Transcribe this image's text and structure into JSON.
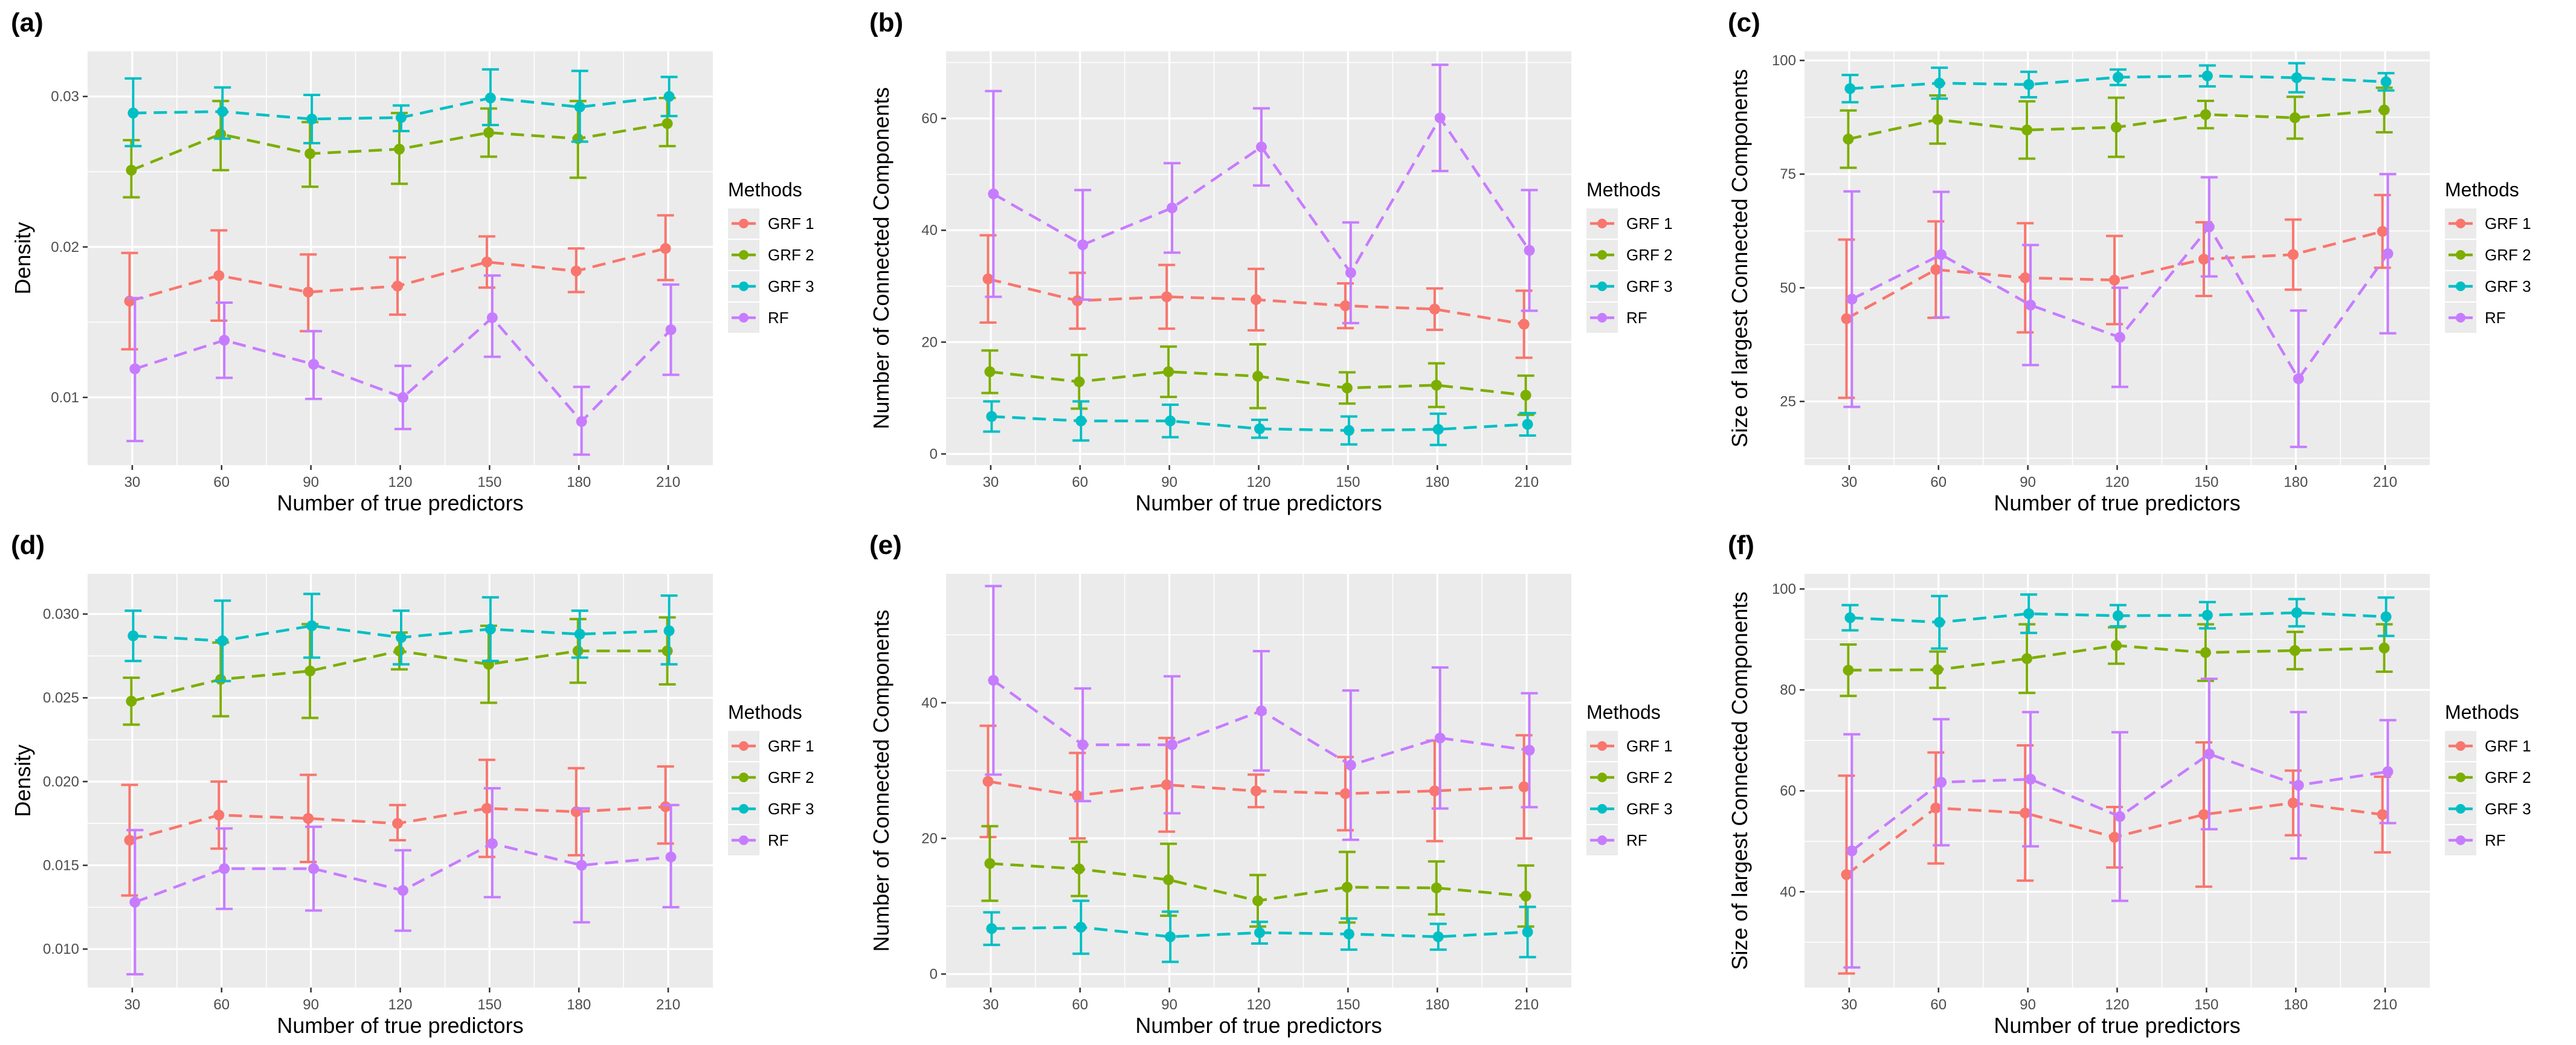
{
  "figure": {
    "legend_title": "Methods",
    "colors": {
      "GRF 1": "#F8766D",
      "GRF 2": "#7CAE00",
      "GRF 3": "#00BFC4",
      "RF": "#C77CFF"
    }
  },
  "chart_data": [
    {
      "panel": "(a)",
      "type": "line",
      "xlabel": "Number of true predictors",
      "ylabel": "Density",
      "categories": [
        30,
        60,
        90,
        120,
        150,
        180,
        210
      ],
      "xlim": [
        15,
        225
      ],
      "ylim": [
        0.0055,
        0.033
      ],
      "yticks": [
        0.01,
        0.02,
        0.03
      ],
      "ytick_labels": [
        "0.01",
        "0.02",
        "0.03"
      ],
      "series": [
        {
          "name": "GRF 1",
          "values": [
            0.0164,
            0.0181,
            0.017,
            0.0174,
            0.019,
            0.0184,
            0.0199
          ],
          "lower": [
            0.0132,
            0.0151,
            0.0144,
            0.0155,
            0.0173,
            0.017,
            0.0178
          ],
          "upper": [
            0.0196,
            0.0211,
            0.0195,
            0.0193,
            0.0207,
            0.0199,
            0.0221
          ]
        },
        {
          "name": "GRF 2",
          "values": [
            0.0251,
            0.0275,
            0.0262,
            0.0265,
            0.0276,
            0.0272,
            0.0282
          ],
          "lower": [
            0.0233,
            0.0251,
            0.024,
            0.0242,
            0.026,
            0.0246,
            0.0267
          ],
          "upper": [
            0.0271,
            0.0297,
            0.0283,
            0.0289,
            0.0292,
            0.0297,
            0.0299
          ]
        },
        {
          "name": "GRF 3",
          "values": [
            0.0289,
            0.029,
            0.0285,
            0.0286,
            0.0299,
            0.0293,
            0.03
          ],
          "lower": [
            0.0267,
            0.0272,
            0.0269,
            0.0277,
            0.0281,
            0.027,
            0.0287
          ],
          "upper": [
            0.0312,
            0.0306,
            0.0301,
            0.0294,
            0.0318,
            0.0317,
            0.0313
          ]
        },
        {
          "name": "RF",
          "values": [
            0.0119,
            0.0138,
            0.0122,
            0.01,
            0.0153,
            0.0084,
            0.0145
          ],
          "lower": [
            0.0071,
            0.0113,
            0.0099,
            0.0079,
            0.0127,
            0.0062,
            0.0115
          ],
          "upper": [
            0.0166,
            0.0163,
            0.0144,
            0.0121,
            0.0181,
            0.0107,
            0.0175
          ]
        }
      ]
    },
    {
      "panel": "(b)",
      "type": "line",
      "xlabel": "Number of true predictors",
      "ylabel": "Number of Connected Components",
      "categories": [
        30,
        60,
        90,
        120,
        150,
        180,
        210
      ],
      "xlim": [
        15,
        225
      ],
      "ylim": [
        -2,
        72
      ],
      "yticks": [
        0,
        20,
        40,
        60
      ],
      "ytick_labels": [
        "0",
        "20",
        "40",
        "60"
      ],
      "series": [
        {
          "name": "GRF 1",
          "values": [
            31.3,
            27.4,
            28.1,
            27.6,
            26.5,
            25.9,
            23.2
          ],
          "lower": [
            23.5,
            22.4,
            22.4,
            22.1,
            22.5,
            22.2,
            17.2
          ],
          "upper": [
            39.1,
            32.4,
            33.8,
            33.1,
            30.5,
            29.6,
            29.2
          ]
        },
        {
          "name": "GRF 2",
          "values": [
            14.7,
            12.9,
            14.7,
            13.9,
            11.8,
            12.3,
            10.5
          ],
          "lower": [
            10.9,
            8.1,
            10.2,
            8.2,
            9.0,
            8.4,
            7.0
          ],
          "upper": [
            18.5,
            17.7,
            19.2,
            19.6,
            14.6,
            16.2,
            14.0
          ]
        },
        {
          "name": "GRF 3",
          "values": [
            6.7,
            5.9,
            5.9,
            4.5,
            4.2,
            4.4,
            5.3
          ],
          "lower": [
            4.0,
            2.4,
            3.0,
            2.9,
            1.7,
            1.6,
            3.3
          ],
          "upper": [
            9.4,
            9.4,
            8.8,
            6.1,
            6.7,
            7.2,
            7.3
          ]
        },
        {
          "name": "RF",
          "values": [
            46.5,
            37.4,
            44.0,
            54.9,
            32.4,
            60.1,
            36.4
          ],
          "lower": [
            28.1,
            27.6,
            36.0,
            48.0,
            23.4,
            50.6,
            25.6
          ],
          "upper": [
            64.9,
            47.2,
            52.0,
            61.8,
            41.4,
            69.6,
            47.2
          ]
        }
      ]
    },
    {
      "panel": "(c)",
      "type": "line",
      "xlabel": "Number of true predictors",
      "ylabel": "Size of largest Connected Components",
      "categories": [
        30,
        60,
        90,
        120,
        150,
        180,
        210
      ],
      "xlim": [
        15,
        225
      ],
      "ylim": [
        11,
        102
      ],
      "yticks": [
        25,
        50,
        75,
        100
      ],
      "ytick_labels": [
        "25",
        "50",
        "75",
        "100"
      ],
      "series": [
        {
          "name": "GRF 1",
          "values": [
            43.2,
            54.0,
            52.2,
            51.7,
            56.3,
            57.3,
            62.4
          ],
          "lower": [
            25.8,
            43.4,
            40.2,
            42.0,
            48.2,
            49.6,
            54.4
          ],
          "upper": [
            60.6,
            64.6,
            64.2,
            61.4,
            64.4,
            65.0,
            70.4
          ]
        },
        {
          "name": "GRF 2",
          "values": [
            82.7,
            87.0,
            84.7,
            85.3,
            88.1,
            87.4,
            89.1
          ],
          "lower": [
            76.4,
            81.7,
            78.4,
            78.8,
            85.1,
            82.8,
            84.2
          ],
          "upper": [
            89.0,
            92.3,
            91.0,
            91.8,
            91.1,
            92.0,
            94.0
          ]
        },
        {
          "name": "GRF 3",
          "values": [
            93.8,
            95.0,
            94.7,
            96.3,
            96.6,
            96.2,
            95.3
          ],
          "lower": [
            90.8,
            91.6,
            91.9,
            94.6,
            94.3,
            93.0,
            93.4
          ],
          "upper": [
            96.8,
            98.4,
            97.5,
            98.0,
            98.9,
            99.4,
            97.2
          ]
        },
        {
          "name": "RF",
          "values": [
            47.5,
            57.3,
            46.2,
            39.1,
            63.4,
            30.0,
            57.5
          ],
          "lower": [
            23.8,
            43.5,
            33.0,
            28.2,
            52.5,
            15.0,
            40.0
          ],
          "upper": [
            71.2,
            71.1,
            59.4,
            50.0,
            74.3,
            45.0,
            75.0
          ]
        }
      ]
    },
    {
      "panel": "(d)",
      "type": "line",
      "xlabel": "Number of true predictors",
      "ylabel": "Density",
      "categories": [
        30,
        60,
        90,
        120,
        150,
        180,
        210
      ],
      "xlim": [
        15,
        225
      ],
      "ylim": [
        0.0077,
        0.0324
      ],
      "yticks": [
        0.01,
        0.015,
        0.02,
        0.025,
        0.03
      ],
      "ytick_labels": [
        "0.010",
        "0.015",
        "0.020",
        "0.025",
        "0.030"
      ],
      "series": [
        {
          "name": "GRF 1",
          "values": [
            0.0165,
            0.018,
            0.0178,
            0.0175,
            0.0184,
            0.0182,
            0.0185
          ],
          "lower": [
            0.0132,
            0.016,
            0.0152,
            0.0165,
            0.0155,
            0.0156,
            0.0163
          ],
          "upper": [
            0.0198,
            0.02,
            0.0204,
            0.0186,
            0.0213,
            0.0208,
            0.0209
          ]
        },
        {
          "name": "GRF 2",
          "values": [
            0.0248,
            0.0261,
            0.0266,
            0.0278,
            0.027,
            0.0278,
            0.0278
          ],
          "lower": [
            0.0234,
            0.0239,
            0.0238,
            0.0267,
            0.0247,
            0.0259,
            0.0258
          ],
          "upper": [
            0.0262,
            0.0283,
            0.0294,
            0.0289,
            0.0293,
            0.0297,
            0.0298
          ]
        },
        {
          "name": "GRF 3",
          "values": [
            0.0287,
            0.0284,
            0.0293,
            0.0286,
            0.0291,
            0.0288,
            0.029
          ],
          "lower": [
            0.0272,
            0.026,
            0.0274,
            0.027,
            0.0272,
            0.0274,
            0.027
          ],
          "upper": [
            0.0302,
            0.0308,
            0.0312,
            0.0302,
            0.031,
            0.0302,
            0.0311
          ]
        },
        {
          "name": "RF",
          "values": [
            0.0128,
            0.0148,
            0.0148,
            0.0135,
            0.0163,
            0.015,
            0.0155
          ],
          "lower": [
            0.0085,
            0.0124,
            0.0123,
            0.0111,
            0.0131,
            0.0116,
            0.0125
          ],
          "upper": [
            0.0171,
            0.0172,
            0.0173,
            0.0159,
            0.0196,
            0.0184,
            0.0186
          ]
        }
      ]
    },
    {
      "panel": "(e)",
      "type": "line",
      "xlabel": "Number of true predictors",
      "ylabel": "Number of Connected Components",
      "categories": [
        30,
        60,
        90,
        120,
        150,
        180,
        210
      ],
      "xlim": [
        15,
        225
      ],
      "ylim": [
        -2,
        59
      ],
      "yticks": [
        0,
        20,
        40
      ],
      "ytick_labels": [
        "0",
        "20",
        "40"
      ],
      "series": [
        {
          "name": "GRF 1",
          "values": [
            28.4,
            26.3,
            27.9,
            27.0,
            26.6,
            27.0,
            27.6
          ],
          "lower": [
            20.2,
            20.0,
            21.0,
            24.6,
            21.2,
            19.6,
            20.0
          ],
          "upper": [
            36.6,
            32.6,
            34.8,
            29.4,
            32.0,
            34.4,
            35.2
          ]
        },
        {
          "name": "GRF 2",
          "values": [
            16.3,
            15.5,
            13.9,
            10.8,
            12.8,
            12.7,
            11.5
          ],
          "lower": [
            10.8,
            11.5,
            8.6,
            7.0,
            7.6,
            8.8,
            7.0
          ],
          "upper": [
            21.8,
            19.5,
            19.2,
            14.6,
            18.0,
            16.6,
            16.0
          ]
        },
        {
          "name": "GRF 3",
          "values": [
            6.7,
            6.9,
            5.5,
            6.1,
            5.9,
            5.5,
            6.2
          ],
          "lower": [
            4.3,
            3.0,
            1.8,
            4.5,
            3.6,
            3.6,
            2.5
          ],
          "upper": [
            9.1,
            10.8,
            9.2,
            7.7,
            8.2,
            7.4,
            9.9
          ]
        },
        {
          "name": "RF",
          "values": [
            43.3,
            33.8,
            33.8,
            38.8,
            30.8,
            34.8,
            33.0
          ],
          "lower": [
            29.4,
            25.5,
            23.7,
            30.0,
            19.8,
            24.4,
            24.6
          ],
          "upper": [
            57.2,
            42.1,
            43.9,
            47.6,
            41.8,
            45.2,
            41.4
          ]
        }
      ]
    },
    {
      "panel": "(f)",
      "type": "line",
      "xlabel": "Number of true predictors",
      "ylabel": "Size of largest Connected Components",
      "categories": [
        30,
        60,
        90,
        120,
        150,
        180,
        210
      ],
      "xlim": [
        15,
        225
      ],
      "ylim": [
        21,
        103
      ],
      "yticks": [
        40,
        60,
        80,
        100
      ],
      "ytick_labels": [
        "40",
        "60",
        "80",
        "100"
      ],
      "series": [
        {
          "name": "GRF 1",
          "values": [
            43.4,
            56.6,
            55.6,
            50.8,
            55.3,
            57.6,
            55.3
          ],
          "lower": [
            23.8,
            45.6,
            42.2,
            44.8,
            41.0,
            51.2,
            47.8
          ],
          "upper": [
            63.0,
            67.6,
            69.0,
            56.8,
            69.6,
            64.0,
            62.8
          ]
        },
        {
          "name": "GRF 2",
          "values": [
            83.9,
            84.0,
            86.2,
            88.8,
            87.4,
            87.8,
            88.3
          ],
          "lower": [
            78.8,
            80.4,
            79.4,
            85.2,
            81.8,
            84.1,
            83.6
          ],
          "upper": [
            89.0,
            87.6,
            93.0,
            92.4,
            93.0,
            91.5,
            93.0
          ]
        },
        {
          "name": "GRF 3",
          "values": [
            94.3,
            93.4,
            95.1,
            94.7,
            94.8,
            95.3,
            94.5
          ],
          "lower": [
            91.8,
            88.2,
            91.3,
            92.6,
            92.2,
            92.6,
            90.7
          ],
          "upper": [
            96.8,
            98.6,
            98.9,
            96.8,
            97.4,
            98.0,
            98.3
          ]
        },
        {
          "name": "RF",
          "values": [
            48.1,
            61.7,
            62.3,
            54.9,
            67.3,
            61.1,
            63.8
          ],
          "lower": [
            25.0,
            49.2,
            49.0,
            38.2,
            52.4,
            46.6,
            53.6
          ],
          "upper": [
            71.2,
            74.2,
            75.6,
            71.6,
            82.2,
            75.6,
            74.0
          ]
        }
      ]
    }
  ]
}
